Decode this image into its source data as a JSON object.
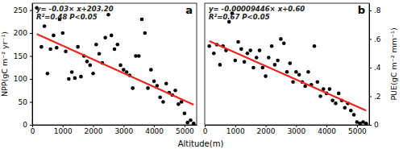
{
  "chart_data": [
    {
      "type": "scatter",
      "title": "a",
      "xlabel": "Altitude(m)",
      "ylabel": "NPP(gC m⁻² yr⁻¹)",
      "annotations": [
        "y= -0.03× x+203.20",
        "R²=0.48  P<0.05"
      ],
      "xlim": [
        0,
        5400
      ],
      "xticks": [
        0,
        1000,
        2000,
        3000,
        4000,
        5000
      ],
      "ylim": [
        0,
        265
      ],
      "yticks": [
        0,
        50,
        100,
        150,
        200,
        250
      ],
      "series": [
        {
          "type": "scatter",
          "marker": "circle",
          "color": "#000000",
          "x": [
            150,
            300,
            400,
            500,
            600,
            700,
            800,
            900,
            1000,
            1100,
            1200,
            1300,
            1400,
            1500,
            1600,
            1700,
            1800,
            1900,
            2000,
            2100,
            2200,
            2300,
            2400,
            2500,
            2600,
            2700,
            2800,
            2900,
            3000,
            3100,
            3200,
            3300,
            3400,
            3500,
            3600,
            3700,
            3800,
            3900,
            4000,
            4100,
            4200,
            4300,
            4400,
            4500,
            4600,
            4700,
            4800,
            4900,
            5000,
            5100,
            5200,
            5300
          ],
          "values": [
            255,
            170,
            215,
            112,
            165,
            195,
            168,
            230,
            200,
            160,
            100,
            115,
            102,
            170,
            105,
            150,
            138,
            130,
            112,
            175,
            155,
            135,
            190,
            240,
            195,
            165,
            175,
            130,
            120,
            115,
            108,
            80,
            150,
            150,
            230,
            200,
            80,
            120,
            95,
            85,
            60,
            50,
            90,
            70,
            65,
            75,
            45,
            50,
            25,
            5,
            10,
            3
          ]
        },
        {
          "type": "line",
          "line_style": "solid",
          "color": "#e8261f",
          "x": [
            150,
            5300
          ],
          "values": [
            198,
            44
          ]
        }
      ]
    },
    {
      "type": "scatter",
      "title": "b",
      "ylabel": "PUE(gC m⁻² mm⁻¹)",
      "annotations": [
        "y= -0.00009446× x+0.60",
        "R²=0.67  P<0.05"
      ],
      "xlim": [
        0,
        5400
      ],
      "xticks": [
        0,
        1000,
        2000,
        3000,
        4000,
        5000
      ],
      "ylim": [
        0,
        0.85
      ],
      "yticks": [
        0,
        {
          "value": 0.2,
          "label": ".2"
        },
        {
          "value": 0.4,
          "label": ".4"
        },
        {
          "value": 0.6,
          "label": ".6"
        },
        {
          "value": 0.8,
          "label": ".8"
        }
      ],
      "series": [
        {
          "type": "scatter",
          "marker": "circle",
          "color": "#000000",
          "x": [
            150,
            300,
            400,
            500,
            600,
            700,
            800,
            900,
            1000,
            1100,
            1200,
            1300,
            1400,
            1500,
            1600,
            1700,
            1800,
            1900,
            2000,
            2100,
            2200,
            2300,
            2400,
            2500,
            2600,
            2700,
            2800,
            2900,
            3000,
            3100,
            3200,
            3300,
            3400,
            3500,
            3600,
            3700,
            3800,
            3900,
            4000,
            4100,
            4200,
            4300,
            4400,
            4500,
            4600,
            4700,
            4800,
            4900,
            5000,
            5100,
            5200,
            5300
          ],
          "values": [
            0.55,
            0.5,
            0.56,
            0.42,
            0.55,
            0.52,
            0.72,
            0.78,
            0.45,
            0.58,
            0.53,
            0.44,
            0.5,
            0.52,
            0.4,
            0.47,
            0.52,
            0.4,
            0.34,
            0.47,
            0.55,
            0.42,
            0.45,
            0.6,
            0.57,
            0.37,
            0.43,
            0.3,
            0.37,
            0.35,
            0.3,
            0.27,
            0.37,
            0.28,
            0.55,
            0.3,
            0.2,
            0.25,
            0.22,
            0.25,
            0.17,
            0.15,
            0.22,
            0.17,
            0.12,
            0.15,
            0.1,
            0.07,
            0.02,
            0.01,
            0.02,
            0.01
          ]
        },
        {
          "type": "line",
          "line_style": "solid",
          "color": "#e8261f",
          "x": [
            150,
            5300
          ],
          "values": [
            0.585,
            0.1
          ]
        }
      ]
    }
  ]
}
